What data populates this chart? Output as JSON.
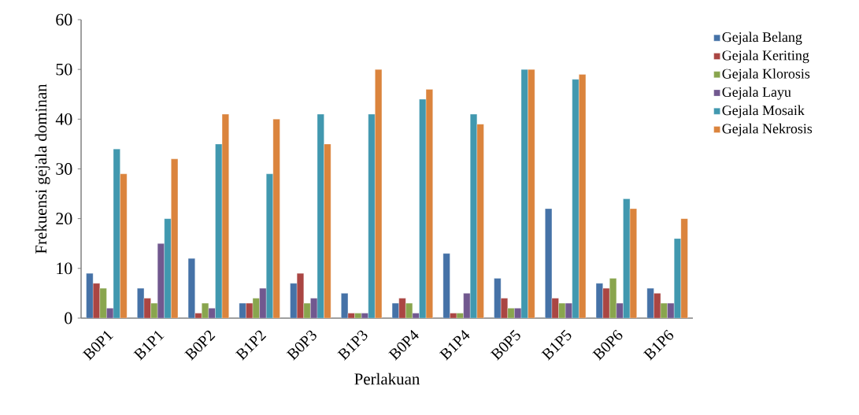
{
  "chart_data": {
    "type": "bar",
    "xlabel": "Perlakuan",
    "ylabel": "Frekuensi gejala dominan",
    "categories": [
      "B0P1",
      "B1P1",
      "B0P2",
      "B1P2",
      "B0P3",
      "B1P3",
      "B0P4",
      "B1P4",
      "B0P5",
      "B1P5",
      "B0P6",
      "B1P6"
    ],
    "series": [
      {
        "name": "Gejala Belang",
        "color": "#4572a7",
        "values": [
          9,
          6,
          12,
          3,
          7,
          5,
          3,
          13,
          8,
          22,
          7,
          6
        ]
      },
      {
        "name": "Gejala Keriting",
        "color": "#aa4643",
        "values": [
          7,
          4,
          1,
          3,
          9,
          1,
          4,
          1,
          4,
          4,
          6,
          5
        ]
      },
      {
        "name": "Gejala Klorosis",
        "color": "#89a54e",
        "values": [
          6,
          3,
          3,
          4,
          3,
          1,
          3,
          1,
          2,
          3,
          8,
          3
        ]
      },
      {
        "name": "Gejala Layu",
        "color": "#71588f",
        "values": [
          2,
          15,
          2,
          6,
          4,
          1,
          1,
          5,
          2,
          3,
          3,
          3
        ]
      },
      {
        "name": "Gejala Mosaik",
        "color": "#4198af",
        "values": [
          34,
          20,
          35,
          29,
          41,
          41,
          44,
          41,
          50,
          48,
          24,
          16
        ]
      },
      {
        "name": "Gejala Nekrosis",
        "color": "#db843d",
        "values": [
          29,
          32,
          41,
          40,
          35,
          50,
          46,
          39,
          50,
          49,
          22,
          20
        ]
      }
    ],
    "ylim": [
      0,
      60
    ],
    "yticks": [
      0,
      10,
      20,
      30,
      40,
      50,
      60
    ],
    "grid": false,
    "legend": "right"
  }
}
